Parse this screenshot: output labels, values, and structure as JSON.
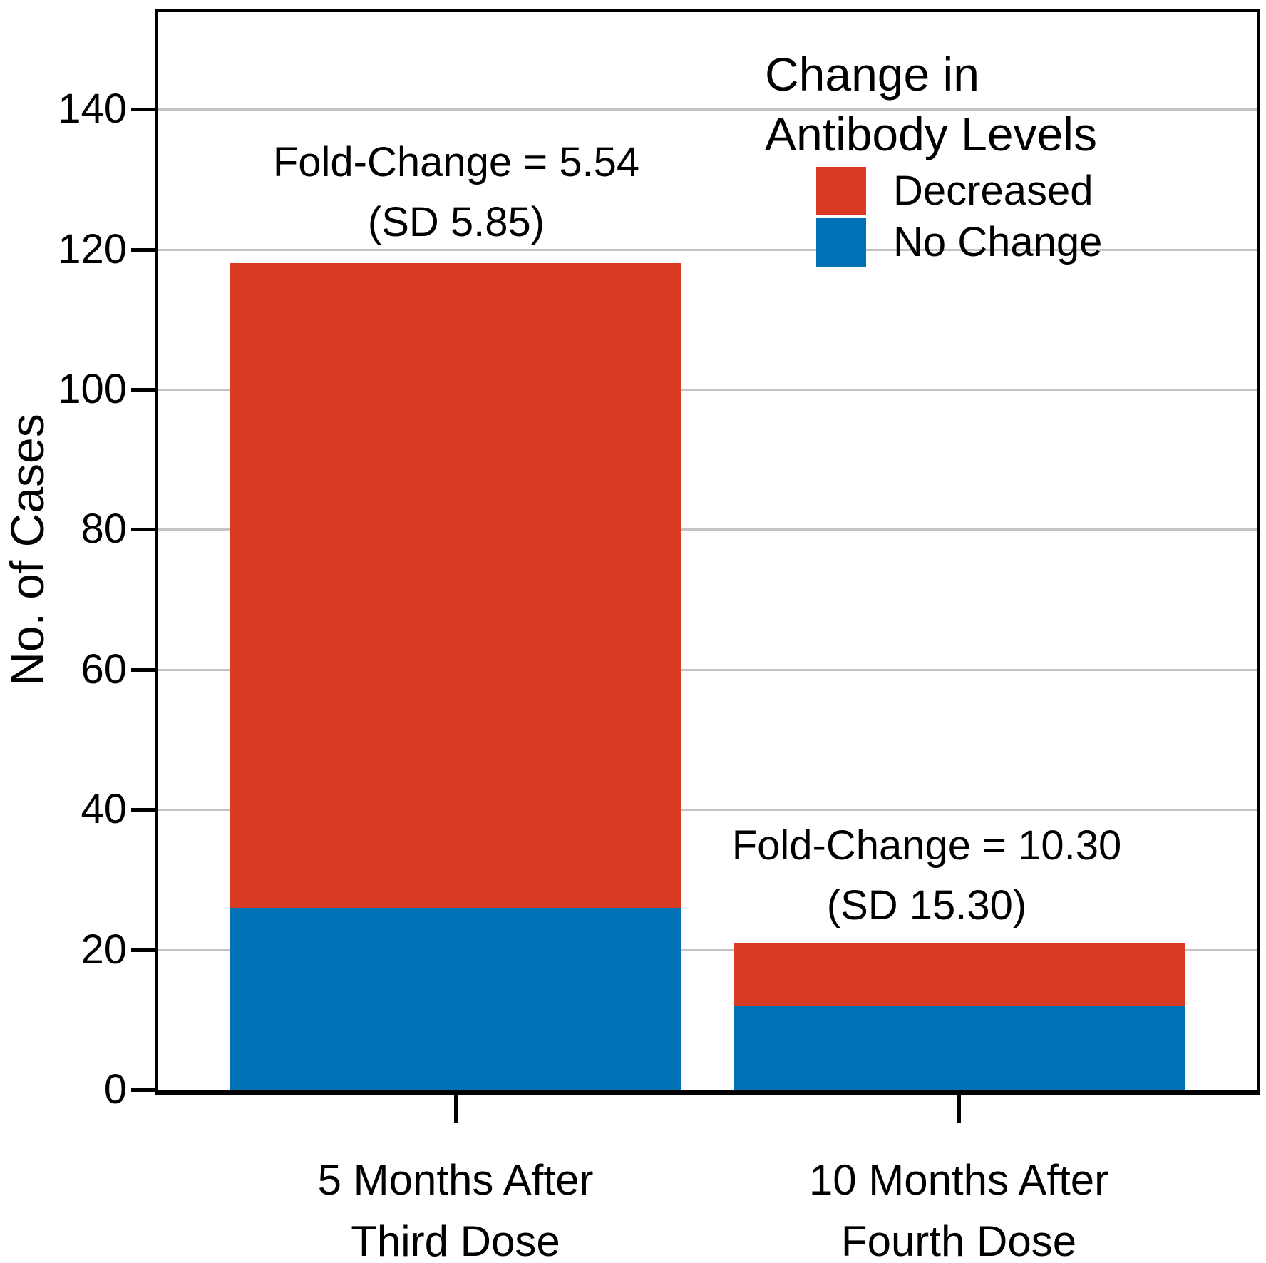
{
  "chart_data": {
    "type": "bar",
    "stacked": true,
    "ylabel": "No. of Cases",
    "xlabel": "",
    "categories": [
      "5 Months After Third Dose",
      "10 Months After Fourth Dose"
    ],
    "categories_lines": [
      [
        "5 Months After",
        "Third Dose"
      ],
      [
        "10 Months After",
        "Fourth Dose"
      ]
    ],
    "series": [
      {
        "name": "Decreased",
        "color": "#d93a23",
        "values": [
          92,
          9
        ]
      },
      {
        "name": "No Change",
        "color": "#0272b6",
        "values": [
          26,
          12
        ]
      }
    ],
    "stack_bottom_series": "No Change",
    "totals": [
      118,
      21
    ],
    "yticks": [
      0,
      20,
      40,
      60,
      80,
      100,
      120,
      140
    ],
    "ylim": [
      0,
      154
    ],
    "grid": true,
    "legend": {
      "title_lines": [
        "Change in",
        "Antibody Levels"
      ],
      "position": "inside-top-right"
    },
    "annotations": [
      {
        "target": "5 Months After Third Dose",
        "line1": "Fold-Change = 5.54",
        "line2": "(SD 5.85)"
      },
      {
        "target": "10 Months After Fourth Dose",
        "line1": "Fold-Change = 10.30",
        "line2": "(SD 15.30)"
      }
    ],
    "colors": {
      "decreased": "#d93a23",
      "no_change": "#0272b6",
      "grid": "#c4c4c4",
      "axis": "#000000"
    }
  }
}
